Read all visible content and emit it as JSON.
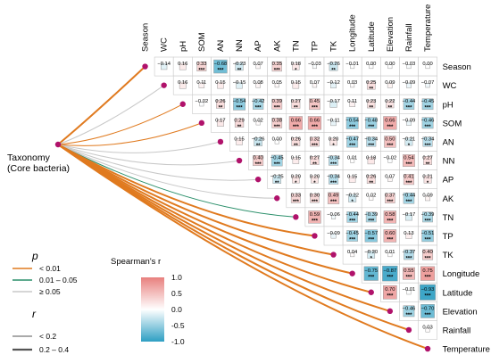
{
  "taxonomy": {
    "line1": "Taxonomy",
    "line2": "(Core bacteria)"
  },
  "colors": {
    "pos": "#e8807e",
    "neg": "#2e9fc3",
    "orange": "#e07a1f",
    "green": "#2a8f6a",
    "gray": "#c8c8c8",
    "node": "#b0126b"
  },
  "legend": {
    "p_title": "p",
    "p_items": [
      {
        "label": "< 0.01",
        "color": "#e07a1f"
      },
      {
        "label": "0.01 – 0.05",
        "color": "#2a8f6a"
      },
      {
        "label": "≥ 0.05",
        "color": "#c8c8c8"
      }
    ],
    "r_title": "r",
    "r_items": [
      {
        "label": "< 0.2",
        "width": 1
      },
      {
        "label": "0.2 – 0.4",
        "width": 2.2
      }
    ],
    "color_title": "Spearman's r",
    "color_ticks": [
      "1.0",
      "0.5",
      "0.0",
      "-0.5",
      "-1.0"
    ]
  },
  "chart_data": {
    "type": "heatmap",
    "variables": [
      "Season",
      "WC",
      "pH",
      "SOM",
      "AN",
      "NN",
      "AP",
      "AK",
      "TN",
      "TP",
      "TK",
      "Longitude",
      "Latitude",
      "Elevation",
      "Rainfall",
      "Temperature"
    ],
    "scale": [
      -1,
      1
    ],
    "cells": [
      {
        "row": 0,
        "col": 1,
        "r": -0.14,
        "sig": ""
      },
      {
        "row": 0,
        "col": 2,
        "r": 0.16,
        "sig": ""
      },
      {
        "row": 0,
        "col": 3,
        "r": 0.33,
        "sig": "***"
      },
      {
        "row": 0,
        "col": 4,
        "r": -0.68,
        "sig": "***"
      },
      {
        "row": 0,
        "col": 5,
        "r": -0.23,
        "sig": "**"
      },
      {
        "row": 0,
        "col": 6,
        "r": 0.07,
        "sig": ""
      },
      {
        "row": 0,
        "col": 7,
        "r": 0.35,
        "sig": "***"
      },
      {
        "row": 0,
        "col": 8,
        "r": 0.18,
        "sig": "*"
      },
      {
        "row": 0,
        "col": 9,
        "r": -0.03,
        "sig": ""
      },
      {
        "row": 0,
        "col": 10,
        "r": -0.26,
        "sig": "**"
      },
      {
        "row": 0,
        "col": 11,
        "r": -0.01,
        "sig": ""
      },
      {
        "row": 0,
        "col": 12,
        "r": 0.0,
        "sig": ""
      },
      {
        "row": 0,
        "col": 13,
        "r": 0.0,
        "sig": ""
      },
      {
        "row": 0,
        "col": 14,
        "r": -0.03,
        "sig": ""
      },
      {
        "row": 0,
        "col": 15,
        "r": 0.0,
        "sig": ""
      },
      {
        "row": 1,
        "col": 2,
        "r": 0.16,
        "sig": ""
      },
      {
        "row": 1,
        "col": 3,
        "r": 0.11,
        "sig": ""
      },
      {
        "row": 1,
        "col": 4,
        "r": 0.15,
        "sig": ""
      },
      {
        "row": 1,
        "col": 5,
        "r": -0.15,
        "sig": ""
      },
      {
        "row": 1,
        "col": 6,
        "r": 0.08,
        "sig": ""
      },
      {
        "row": 1,
        "col": 7,
        "r": 0.05,
        "sig": ""
      },
      {
        "row": 1,
        "col": 8,
        "r": 0.15,
        "sig": ""
      },
      {
        "row": 1,
        "col": 9,
        "r": 0.07,
        "sig": ""
      },
      {
        "row": 1,
        "col": 10,
        "r": -0.12,
        "sig": ""
      },
      {
        "row": 1,
        "col": 11,
        "r": 0.03,
        "sig": ""
      },
      {
        "row": 1,
        "col": 12,
        "r": 0.25,
        "sig": "**"
      },
      {
        "row": 1,
        "col": 13,
        "r": 0.09,
        "sig": ""
      },
      {
        "row": 1,
        "col": 14,
        "r": -0.09,
        "sig": ""
      },
      {
        "row": 1,
        "col": 15,
        "r": -0.07,
        "sig": ""
      },
      {
        "row": 2,
        "col": 3,
        "r": -0.02,
        "sig": ""
      },
      {
        "row": 2,
        "col": 4,
        "r": 0.26,
        "sig": "**"
      },
      {
        "row": 2,
        "col": 5,
        "r": -0.54,
        "sig": "***"
      },
      {
        "row": 2,
        "col": 6,
        "r": -0.42,
        "sig": "***"
      },
      {
        "row": 2,
        "col": 7,
        "r": 0.39,
        "sig": "***"
      },
      {
        "row": 2,
        "col": 8,
        "r": 0.27,
        "sig": "**"
      },
      {
        "row": 2,
        "col": 9,
        "r": 0.45,
        "sig": "***"
      },
      {
        "row": 2,
        "col": 10,
        "r": -0.17,
        "sig": ""
      },
      {
        "row": 2,
        "col": 11,
        "r": 0.11,
        "sig": ""
      },
      {
        "row": 2,
        "col": 12,
        "r": 0.23,
        "sig": "**"
      },
      {
        "row": 2,
        "col": 13,
        "r": 0.22,
        "sig": "**"
      },
      {
        "row": 2,
        "col": 14,
        "r": -0.44,
        "sig": "***"
      },
      {
        "row": 2,
        "col": 15,
        "r": -0.45,
        "sig": "***"
      },
      {
        "row": 3,
        "col": 4,
        "r": 0.17,
        "sig": ""
      },
      {
        "row": 3,
        "col": 5,
        "r": 0.29,
        "sig": "**"
      },
      {
        "row": 3,
        "col": 6,
        "r": 0.02,
        "sig": ""
      },
      {
        "row": 3,
        "col": 7,
        "r": 0.38,
        "sig": "***"
      },
      {
        "row": 3,
        "col": 8,
        "r": 0.66,
        "sig": "***"
      },
      {
        "row": 3,
        "col": 9,
        "r": 0.66,
        "sig": "***"
      },
      {
        "row": 3,
        "col": 10,
        "r": -0.11,
        "sig": ""
      },
      {
        "row": 3,
        "col": 11,
        "r": -0.54,
        "sig": "***"
      },
      {
        "row": 3,
        "col": 12,
        "r": -0.48,
        "sig": "***"
      },
      {
        "row": 3,
        "col": 13,
        "r": 0.66,
        "sig": "***"
      },
      {
        "row": 3,
        "col": 14,
        "r": -0.09,
        "sig": ""
      },
      {
        "row": 3,
        "col": 15,
        "r": -0.46,
        "sig": "***"
      },
      {
        "row": 4,
        "col": 5,
        "r": 0.15,
        "sig": ""
      },
      {
        "row": 4,
        "col": 6,
        "r": -0.26,
        "sig": "**"
      },
      {
        "row": 4,
        "col": 7,
        "r": 0.0,
        "sig": ""
      },
      {
        "row": 4,
        "col": 8,
        "r": 0.26,
        "sig": "**"
      },
      {
        "row": 4,
        "col": 9,
        "r": 0.32,
        "sig": "***"
      },
      {
        "row": 4,
        "col": 10,
        "r": 0.2,
        "sig": "*"
      },
      {
        "row": 4,
        "col": 11,
        "r": -0.47,
        "sig": "***"
      },
      {
        "row": 4,
        "col": 12,
        "r": -0.34,
        "sig": "***"
      },
      {
        "row": 4,
        "col": 13,
        "r": 0.5,
        "sig": "***"
      },
      {
        "row": 4,
        "col": 14,
        "r": -0.21,
        "sig": "*"
      },
      {
        "row": 4,
        "col": 15,
        "r": -0.34,
        "sig": "***"
      },
      {
        "row": 5,
        "col": 6,
        "r": 0.4,
        "sig": "***"
      },
      {
        "row": 5,
        "col": 7,
        "r": -0.45,
        "sig": "***"
      },
      {
        "row": 5,
        "col": 8,
        "r": 0.15,
        "sig": ""
      },
      {
        "row": 5,
        "col": 9,
        "r": 0.27,
        "sig": "**"
      },
      {
        "row": 5,
        "col": 10,
        "r": -0.34,
        "sig": "***"
      },
      {
        "row": 5,
        "col": 11,
        "r": 0.01,
        "sig": ""
      },
      {
        "row": 5,
        "col": 12,
        "r": 0.18,
        "sig": ""
      },
      {
        "row": 5,
        "col": 13,
        "r": -0.02,
        "sig": ""
      },
      {
        "row": 5,
        "col": 14,
        "r": 0.54,
        "sig": "***"
      },
      {
        "row": 5,
        "col": 15,
        "r": 0.27,
        "sig": "**"
      },
      {
        "row": 6,
        "col": 7,
        "r": -0.25,
        "sig": "**"
      },
      {
        "row": 6,
        "col": 8,
        "r": 0.2,
        "sig": "*"
      },
      {
        "row": 6,
        "col": 9,
        "r": 0.2,
        "sig": "*"
      },
      {
        "row": 6,
        "col": 10,
        "r": -0.34,
        "sig": "***"
      },
      {
        "row": 6,
        "col": 11,
        "r": 0.15,
        "sig": ""
      },
      {
        "row": 6,
        "col": 12,
        "r": 0.26,
        "sig": "**"
      },
      {
        "row": 6,
        "col": 13,
        "r": 0.07,
        "sig": ""
      },
      {
        "row": 6,
        "col": 14,
        "r": 0.41,
        "sig": "***"
      },
      {
        "row": 6,
        "col": 15,
        "r": 0.21,
        "sig": "*"
      },
      {
        "row": 7,
        "col": 8,
        "r": 0.33,
        "sig": "***"
      },
      {
        "row": 7,
        "col": 9,
        "r": 0.3,
        "sig": "***"
      },
      {
        "row": 7,
        "col": 10,
        "r": 0.49,
        "sig": "***"
      },
      {
        "row": 7,
        "col": 11,
        "r": -0.22,
        "sig": "*"
      },
      {
        "row": 7,
        "col": 12,
        "r": 0.02,
        "sig": ""
      },
      {
        "row": 7,
        "col": 13,
        "r": 0.37,
        "sig": "***"
      },
      {
        "row": 7,
        "col": 14,
        "r": -0.44,
        "sig": "***"
      },
      {
        "row": 7,
        "col": 15,
        "r": 0.09,
        "sig": ""
      },
      {
        "row": 8,
        "col": 9,
        "r": 0.59,
        "sig": "***"
      },
      {
        "row": 8,
        "col": 10,
        "r": -0.06,
        "sig": ""
      },
      {
        "row": 8,
        "col": 11,
        "r": -0.44,
        "sig": "***"
      },
      {
        "row": 8,
        "col": 12,
        "r": -0.39,
        "sig": "***"
      },
      {
        "row": 8,
        "col": 13,
        "r": 0.58,
        "sig": "***"
      },
      {
        "row": 8,
        "col": 14,
        "r": -0.17,
        "sig": ""
      },
      {
        "row": 8,
        "col": 15,
        "r": -0.39,
        "sig": "***"
      },
      {
        "row": 9,
        "col": 10,
        "r": -0.09,
        "sig": ""
      },
      {
        "row": 9,
        "col": 11,
        "r": -0.45,
        "sig": "***"
      },
      {
        "row": 9,
        "col": 12,
        "r": -0.57,
        "sig": "***"
      },
      {
        "row": 9,
        "col": 13,
        "r": 0.6,
        "sig": "***"
      },
      {
        "row": 9,
        "col": 14,
        "r": 0.13,
        "sig": ""
      },
      {
        "row": 9,
        "col": 15,
        "r": -0.51,
        "sig": "***"
      },
      {
        "row": 10,
        "col": 11,
        "r": 0.04,
        "sig": ""
      },
      {
        "row": 10,
        "col": 12,
        "r": -0.2,
        "sig": "*"
      },
      {
        "row": 10,
        "col": 13,
        "r": 0.01,
        "sig": ""
      },
      {
        "row": 10,
        "col": 14,
        "r": -0.37,
        "sig": "***"
      },
      {
        "row": 10,
        "col": 15,
        "r": 0.4,
        "sig": "***"
      },
      {
        "row": 11,
        "col": 12,
        "r": -0.75,
        "sig": "***"
      },
      {
        "row": 11,
        "col": 13,
        "r": -0.87,
        "sig": "***"
      },
      {
        "row": 11,
        "col": 14,
        "r": 0.55,
        "sig": "***"
      },
      {
        "row": 11,
        "col": 15,
        "r": 0.75,
        "sig": "***"
      },
      {
        "row": 12,
        "col": 13,
        "r": 0.7,
        "sig": "***"
      },
      {
        "row": 12,
        "col": 14,
        "r": -0.01,
        "sig": ""
      },
      {
        "row": 12,
        "col": 15,
        "r": -0.93,
        "sig": "***"
      },
      {
        "row": 13,
        "col": 14,
        "r": -0.46,
        "sig": "***"
      },
      {
        "row": 13,
        "col": 15,
        "r": -0.7,
        "sig": "***"
      },
      {
        "row": 14,
        "col": 15,
        "r": 0.03,
        "sig": ""
      }
    ],
    "links": [
      {
        "target": "Season",
        "p": "orange",
        "r": "strong"
      },
      {
        "target": "WC",
        "p": "gray",
        "r": "weak"
      },
      {
        "target": "pH",
        "p": "orange",
        "r": "weak"
      },
      {
        "target": "SOM",
        "p": "orange",
        "r": "weak"
      },
      {
        "target": "AN",
        "p": "gray",
        "r": "weak"
      },
      {
        "target": "NN",
        "p": "gray",
        "r": "weak"
      },
      {
        "target": "AP",
        "p": "gray",
        "r": "weak"
      },
      {
        "target": "AK",
        "p": "gray",
        "r": "weak"
      },
      {
        "target": "TN",
        "p": "green",
        "r": "weak"
      },
      {
        "target": "TP",
        "p": "orange",
        "r": "strong"
      },
      {
        "target": "TK",
        "p": "orange",
        "r": "strong"
      },
      {
        "target": "Longitude",
        "p": "orange",
        "r": "strong"
      },
      {
        "target": "Latitude",
        "p": "orange",
        "r": "strong"
      },
      {
        "target": "Elevation",
        "p": "orange",
        "r": "strong"
      },
      {
        "target": "Rainfall",
        "p": "orange",
        "r": "strong"
      },
      {
        "target": "Temperature",
        "p": "orange",
        "r": "strong"
      }
    ]
  }
}
